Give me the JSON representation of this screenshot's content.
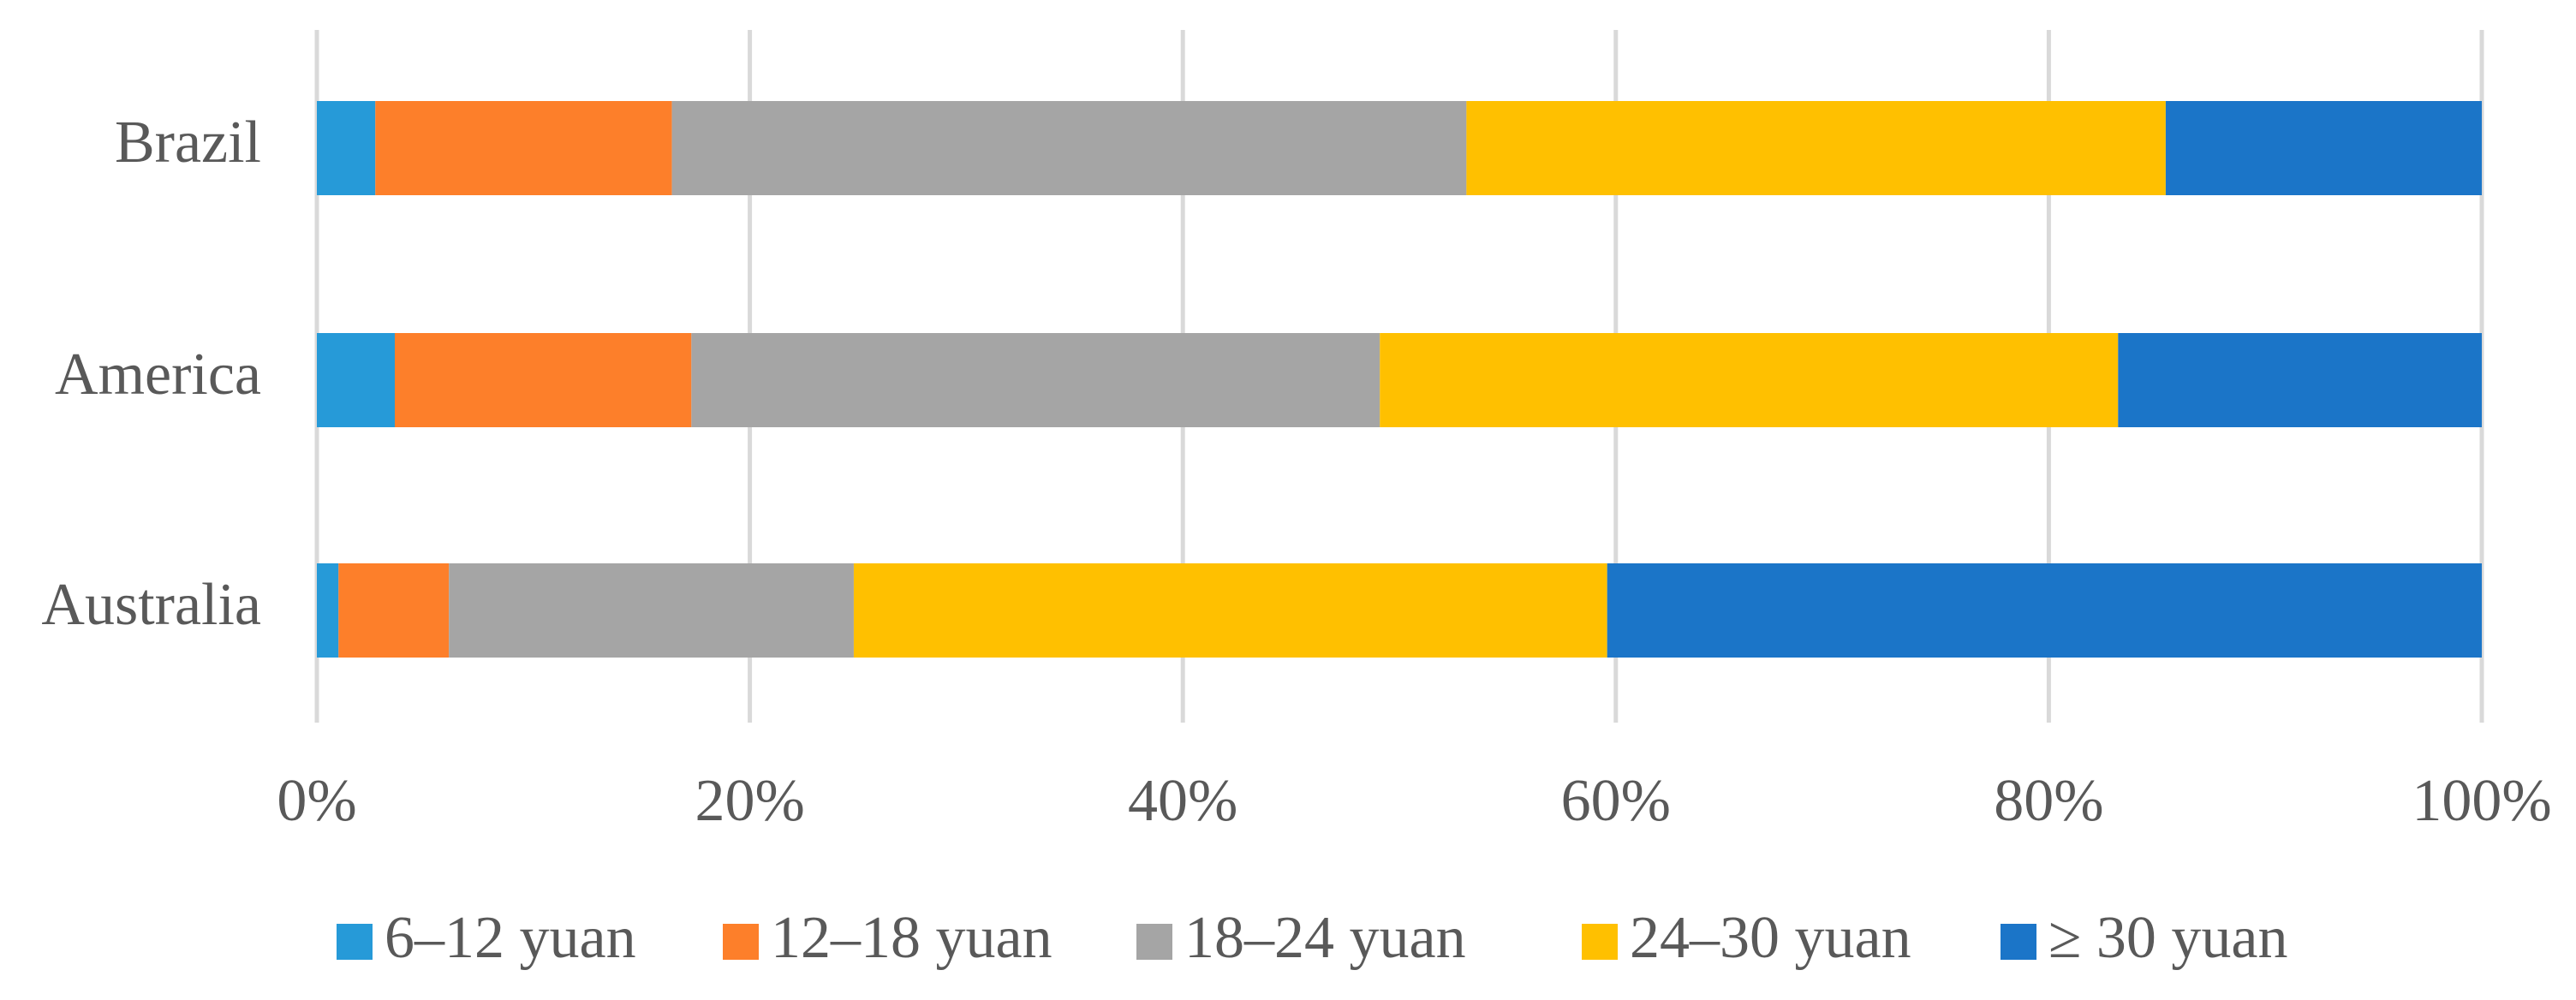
{
  "chart_data": {
    "type": "stacked-bar-horizontal",
    "categories": [
      "Brazil",
      "America",
      "Australia"
    ],
    "series": [
      {
        "name": "6–12 yuan",
        "color": "#269ad8",
        "values": [
          2.7,
          3.6,
          1.0
        ]
      },
      {
        "name": "12–18 yuan",
        "color": "#fd7f2a",
        "values": [
          13.7,
          13.7,
          5.1
        ]
      },
      {
        "name": "18–24 yuan",
        "color": "#a5a5a5",
        "values": [
          36.7,
          31.8,
          18.7
        ]
      },
      {
        "name": "24–30 yuan",
        "color": "#ffc000",
        "values": [
          32.3,
          34.1,
          34.8
        ]
      },
      {
        "name": "≥ 30 yuan",
        "color": "#1b75c8",
        "values": [
          14.6,
          16.8,
          40.4
        ]
      }
    ],
    "xlim": [
      0,
      100
    ],
    "xticks": [
      {
        "value": 0,
        "label": "0%"
      },
      {
        "value": 20,
        "label": "20%"
      },
      {
        "value": 40,
        "label": "40%"
      },
      {
        "value": 60,
        "label": "60%"
      },
      {
        "value": 80,
        "label": "80%"
      },
      {
        "value": 100,
        "label": "100%"
      }
    ],
    "grid": true,
    "legend": "bottom"
  }
}
